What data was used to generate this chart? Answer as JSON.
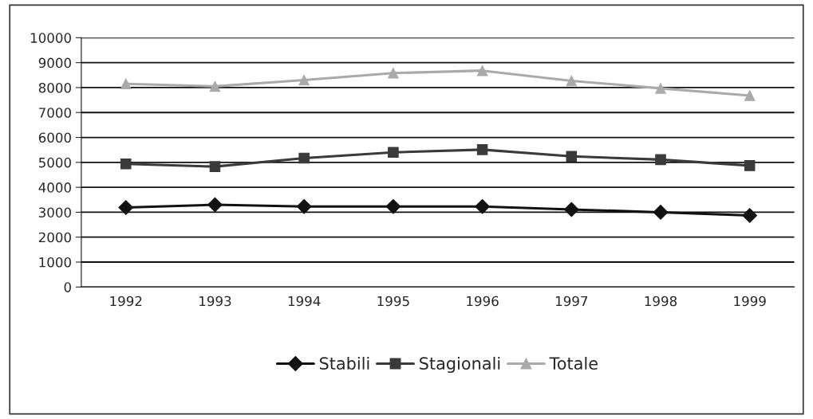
{
  "chart_data": {
    "type": "line",
    "categories": [
      "1992",
      "1993",
      "1994",
      "1995",
      "1996",
      "1997",
      "1998",
      "1999"
    ],
    "series": [
      {
        "name": "Stabili",
        "color": "#111111",
        "marker": "diamond",
        "values": [
          3190,
          3300,
          3230,
          3230,
          3230,
          3110,
          3000,
          2870
        ]
      },
      {
        "name": "Stagionali",
        "color": "#3a3a3a",
        "marker": "square",
        "values": [
          4940,
          4830,
          5170,
          5400,
          5510,
          5240,
          5110,
          4870
        ]
      },
      {
        "name": "Totale",
        "color": "#aaaaaa",
        "marker": "triangle",
        "values": [
          8150,
          8050,
          8300,
          8580,
          8680,
          8270,
          7970,
          7680
        ]
      }
    ],
    "ylim": [
      0,
      10000
    ],
    "yticks": [
      0,
      1000,
      2000,
      3000,
      4000,
      5000,
      6000,
      7000,
      8000,
      9000,
      10000
    ],
    "grid": "y",
    "legend": "bottom"
  }
}
